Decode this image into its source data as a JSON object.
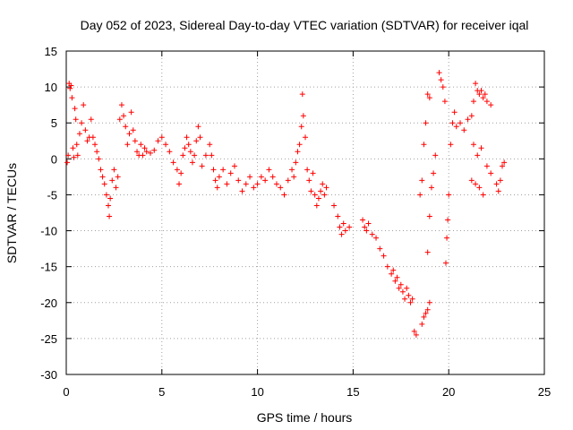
{
  "chart_data": {
    "type": "scatter",
    "title": "Day 052 of 2023, Sidereal Day-to-day VTEC variation (SDTVAR) for receiver iqal",
    "xlabel": "GPS time / hours",
    "ylabel": "SDTVAR / TECUs",
    "xlim": [
      0,
      25
    ],
    "ylim": [
      -30,
      15
    ],
    "xticks": [
      0,
      5,
      10,
      15,
      20,
      25
    ],
    "yticks": [
      -30,
      -25,
      -20,
      -15,
      -10,
      -5,
      0,
      5,
      10,
      15
    ],
    "xtick_labels": [
      "0",
      "5",
      "10",
      "15",
      "20",
      "25"
    ],
    "ytick_labels": [
      "-30",
      "-25",
      "-20",
      "-15",
      "-10",
      "-5",
      "0",
      "5",
      "10",
      "15"
    ],
    "grid": true,
    "marker": "+",
    "color": "#ff0000",
    "series": [
      {
        "name": "SDTVAR",
        "points": [
          [
            0.05,
            -0.5
          ],
          [
            0.1,
            0.5
          ],
          [
            0.15,
            10.5
          ],
          [
            0.2,
            9.8
          ],
          [
            0.25,
            10.2
          ],
          [
            0.3,
            8.5
          ],
          [
            0.35,
            1.5
          ],
          [
            0.4,
            0.2
          ],
          [
            0.45,
            7.0
          ],
          [
            0.5,
            5.5
          ],
          [
            0.55,
            2.0
          ],
          [
            0.6,
            0.5
          ],
          [
            0.7,
            3.5
          ],
          [
            0.8,
            5.0
          ],
          [
            0.9,
            7.5
          ],
          [
            1.0,
            4.0
          ],
          [
            1.1,
            2.5
          ],
          [
            1.2,
            3.0
          ],
          [
            1.3,
            5.5
          ],
          [
            1.4,
            3.0
          ],
          [
            1.5,
            2.0
          ],
          [
            1.6,
            1.0
          ],
          [
            1.7,
            0.0
          ],
          [
            1.8,
            -1.5
          ],
          [
            1.9,
            -2.5
          ],
          [
            2.0,
            -3.5
          ],
          [
            2.1,
            -5.0
          ],
          [
            2.2,
            -6.5
          ],
          [
            2.25,
            -8.0
          ],
          [
            2.3,
            -5.5
          ],
          [
            2.4,
            -3.0
          ],
          [
            2.5,
            -1.5
          ],
          [
            2.6,
            -4.0
          ],
          [
            2.7,
            -2.5
          ],
          [
            2.8,
            5.5
          ],
          [
            2.9,
            7.5
          ],
          [
            3.0,
            6.0
          ],
          [
            3.1,
            4.5
          ],
          [
            3.2,
            2.0
          ],
          [
            3.3,
            3.5
          ],
          [
            3.4,
            6.5
          ],
          [
            3.5,
            4.0
          ],
          [
            3.6,
            2.5
          ],
          [
            3.7,
            1.0
          ],
          [
            3.8,
            0.5
          ],
          [
            3.9,
            2.0
          ],
          [
            4.0,
            0.5
          ],
          [
            4.1,
            1.5
          ],
          [
            4.2,
            1.0
          ],
          [
            4.4,
            0.8
          ],
          [
            4.6,
            1.2
          ],
          [
            4.8,
            2.5
          ],
          [
            5.0,
            3.0
          ],
          [
            5.2,
            2.0
          ],
          [
            5.4,
            1.0
          ],
          [
            5.6,
            -0.5
          ],
          [
            5.8,
            -1.5
          ],
          [
            5.9,
            -3.5
          ],
          [
            6.0,
            -2.0
          ],
          [
            6.1,
            0.5
          ],
          [
            6.2,
            1.5
          ],
          [
            6.3,
            3.0
          ],
          [
            6.4,
            2.0
          ],
          [
            6.5,
            1.0
          ],
          [
            6.6,
            -0.5
          ],
          [
            6.7,
            0.5
          ],
          [
            6.8,
            2.5
          ],
          [
            6.9,
            4.5
          ],
          [
            7.0,
            3.0
          ],
          [
            7.1,
            -1.0
          ],
          [
            7.3,
            0.5
          ],
          [
            7.5,
            2.0
          ],
          [
            7.6,
            0.5
          ],
          [
            7.7,
            -1.5
          ],
          [
            7.8,
            -3.0
          ],
          [
            7.9,
            -4.0
          ],
          [
            8.0,
            -2.5
          ],
          [
            8.2,
            -1.5
          ],
          [
            8.4,
            -3.5
          ],
          [
            8.6,
            -2.0
          ],
          [
            8.8,
            -1.0
          ],
          [
            9.0,
            -3.0
          ],
          [
            9.2,
            -4.5
          ],
          [
            9.4,
            -3.5
          ],
          [
            9.6,
            -2.5
          ],
          [
            9.8,
            -4.0
          ],
          [
            10.0,
            -3.5
          ],
          [
            10.2,
            -2.5
          ],
          [
            10.4,
            -3.0
          ],
          [
            10.6,
            -1.5
          ],
          [
            10.8,
            -2.5
          ],
          [
            11.0,
            -3.5
          ],
          [
            11.2,
            -4.0
          ],
          [
            11.4,
            -5.0
          ],
          [
            11.6,
            -3.0
          ],
          [
            11.8,
            -1.5
          ],
          [
            11.9,
            -2.5
          ],
          [
            12.0,
            -0.5
          ],
          [
            12.1,
            1.0
          ],
          [
            12.2,
            2.0
          ],
          [
            12.3,
            4.5
          ],
          [
            12.35,
            9.0
          ],
          [
            12.4,
            6.0
          ],
          [
            12.5,
            3.0
          ],
          [
            12.6,
            -1.5
          ],
          [
            12.7,
            -3.0
          ],
          [
            12.8,
            -4.5
          ],
          [
            12.9,
            -2.0
          ],
          [
            13.0,
            -5.0
          ],
          [
            13.1,
            -6.5
          ],
          [
            13.2,
            -5.5
          ],
          [
            13.3,
            -4.5
          ],
          [
            13.4,
            -3.5
          ],
          [
            13.5,
            -5.0
          ],
          [
            13.6,
            -4.0
          ],
          [
            14.0,
            -6.5
          ],
          [
            14.2,
            -8.0
          ],
          [
            14.3,
            -9.5
          ],
          [
            14.4,
            -10.5
          ],
          [
            14.5,
            -9.0
          ],
          [
            14.6,
            -10.0
          ],
          [
            14.8,
            -9.5
          ],
          [
            15.5,
            -8.5
          ],
          [
            15.6,
            -9.5
          ],
          [
            15.7,
            -10.0
          ],
          [
            15.8,
            -9.0
          ],
          [
            16.0,
            -10.5
          ],
          [
            16.2,
            -11.0
          ],
          [
            16.4,
            -12.5
          ],
          [
            16.6,
            -13.5
          ],
          [
            16.8,
            -15.0
          ],
          [
            17.0,
            -16.0
          ],
          [
            17.1,
            -15.5
          ],
          [
            17.2,
            -17.0
          ],
          [
            17.3,
            -16.5
          ],
          [
            17.4,
            -18.0
          ],
          [
            17.5,
            -17.5
          ],
          [
            17.6,
            -18.5
          ],
          [
            17.7,
            -19.5
          ],
          [
            17.8,
            -18.0
          ],
          [
            17.9,
            -19.0
          ],
          [
            18.0,
            -20.0
          ],
          [
            18.1,
            -19.5
          ],
          [
            18.2,
            -24.0
          ],
          [
            18.3,
            -24.5
          ],
          [
            18.5,
            -5.0
          ],
          [
            18.6,
            -3.0
          ],
          [
            18.7,
            2.0
          ],
          [
            18.8,
            5.0
          ],
          [
            18.9,
            9.0
          ],
          [
            19.0,
            8.5
          ],
          [
            18.6,
            -23.0
          ],
          [
            18.7,
            -22.0
          ],
          [
            18.8,
            -21.5
          ],
          [
            18.9,
            -21.0
          ],
          [
            19.0,
            -20.0
          ],
          [
            18.9,
            -13.0
          ],
          [
            19.0,
            -8.0
          ],
          [
            19.1,
            -4.0
          ],
          [
            19.2,
            -2.0
          ],
          [
            19.3,
            0.5
          ],
          [
            19.5,
            12.0
          ],
          [
            19.6,
            11.0
          ],
          [
            19.7,
            10.0
          ],
          [
            19.8,
            8.0
          ],
          [
            19.85,
            -14.5
          ],
          [
            19.9,
            -11.0
          ],
          [
            19.95,
            -8.5
          ],
          [
            20.0,
            -5.0
          ],
          [
            20.1,
            2.0
          ],
          [
            20.2,
            5.0
          ],
          [
            20.3,
            6.5
          ],
          [
            20.4,
            4.5
          ],
          [
            20.6,
            5.0
          ],
          [
            20.8,
            4.0
          ],
          [
            21.0,
            5.5
          ],
          [
            21.2,
            6.0
          ],
          [
            21.3,
            8.0
          ],
          [
            21.4,
            10.5
          ],
          [
            21.5,
            9.5
          ],
          [
            21.6,
            9.0
          ],
          [
            21.7,
            9.5
          ],
          [
            21.8,
            8.5
          ],
          [
            21.9,
            9.0
          ],
          [
            22.0,
            8.0
          ],
          [
            22.2,
            7.5
          ],
          [
            21.2,
            -3.0
          ],
          [
            21.4,
            -3.5
          ],
          [
            21.6,
            -4.0
          ],
          [
            21.8,
            -5.0
          ],
          [
            21.3,
            2.0
          ],
          [
            21.5,
            0.5
          ],
          [
            21.7,
            1.5
          ],
          [
            22.0,
            -1.0
          ],
          [
            22.2,
            -2.0
          ],
          [
            22.5,
            -3.5
          ],
          [
            22.6,
            -4.5
          ],
          [
            22.7,
            -3.0
          ],
          [
            22.8,
            -1.0
          ],
          [
            22.9,
            -0.5
          ]
        ]
      }
    ]
  }
}
